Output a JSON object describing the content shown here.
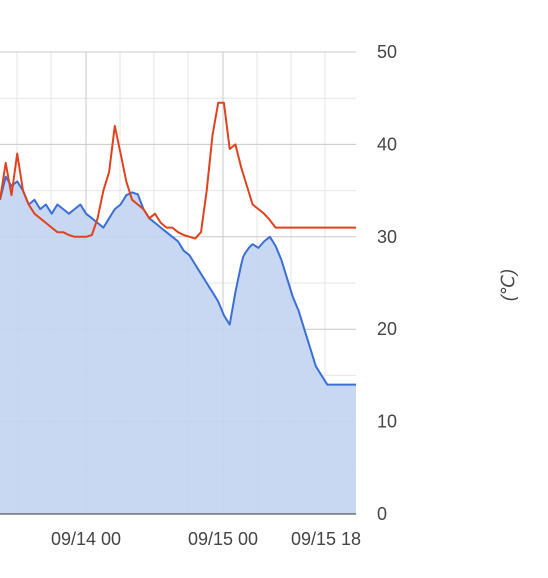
{
  "chart_data": {
    "type": "area",
    "ylabel": "(℃)",
    "ylim": [
      0,
      50
    ],
    "y_ticks": [
      "0",
      "10",
      "20",
      "30",
      "40",
      "50"
    ],
    "x_ticks": [
      "09/14 00",
      "09/15 00",
      "09/15 18"
    ],
    "grid": true,
    "colors": {
      "area_series_line": "#3b6fd4",
      "area_fill": "#c3d4f1",
      "line_series": "#e0421e",
      "grid_major": "#c8c8c8",
      "grid_minor": "#e6e6e6"
    },
    "series": [
      {
        "style": "area",
        "x": [
          0,
          3,
          6,
          9,
          12,
          15,
          18,
          21,
          24,
          27,
          30,
          33,
          36,
          39,
          42,
          45,
          48,
          51,
          54,
          57,
          60,
          63,
          66,
          69,
          72,
          75,
          78,
          81,
          84,
          87,
          90,
          93,
          96,
          99,
          102,
          105,
          108,
          111,
          114,
          117,
          120,
          123,
          126,
          127,
          128,
          130,
          132,
          135,
          138,
          141,
          144,
          147,
          150,
          153,
          156,
          159,
          162,
          165,
          168,
          171,
          174,
          177,
          180,
          183,
          186
        ],
        "values": [
          34.0,
          36.5,
          35.5,
          36.0,
          35.0,
          33.5,
          34.0,
          33.0,
          33.5,
          32.5,
          33.5,
          33.0,
          32.5,
          33.0,
          33.5,
          32.5,
          32.0,
          31.5,
          31.0,
          32.0,
          33.0,
          33.5,
          34.5,
          34.8,
          34.6,
          33.0,
          32.0,
          31.5,
          31.0,
          30.5,
          30.0,
          29.5,
          28.5,
          28.0,
          27.0,
          26.0,
          25.0,
          24.0,
          23.0,
          21.5,
          20.5,
          24.0,
          27.0,
          27.8,
          28.2,
          28.8,
          29.2,
          28.8,
          29.5,
          30.0,
          29.0,
          27.5,
          25.5,
          23.5,
          22.0,
          20.0,
          18.0,
          16.0,
          15.0,
          14.0,
          14.0,
          14.0,
          14.0,
          14.0,
          14.0
        ]
      },
      {
        "style": "line",
        "x": [
          0,
          3,
          6,
          9,
          12,
          15,
          18,
          21,
          24,
          27,
          30,
          33,
          36,
          39,
          42,
          45,
          48,
          51,
          54,
          57,
          60,
          63,
          66,
          69,
          72,
          75,
          78,
          81,
          84,
          87,
          90,
          93,
          96,
          99,
          102,
          105,
          108,
          111,
          114,
          117,
          120,
          123,
          126,
          129,
          132,
          135,
          138,
          141,
          144,
          147,
          150,
          153,
          156,
          159,
          162,
          165,
          168,
          171,
          174,
          177,
          180,
          183,
          186
        ],
        "values": [
          34.0,
          38.0,
          34.5,
          39.0,
          35.0,
          33.5,
          32.5,
          32.0,
          31.5,
          31.0,
          30.5,
          30.5,
          30.2,
          30.0,
          30.0,
          30.0,
          30.2,
          32.0,
          35.0,
          37.0,
          42.0,
          39.0,
          36.0,
          34.0,
          33.5,
          33.0,
          32.0,
          32.5,
          31.5,
          31.0,
          31.0,
          30.5,
          30.2,
          30.0,
          29.8,
          30.5,
          35.0,
          41.0,
          44.5,
          44.5,
          39.5,
          40.0,
          37.5,
          35.5,
          33.5,
          33.0,
          32.5,
          31.8,
          31.0,
          31.0,
          31.0,
          31.0,
          31.0,
          31.0,
          31.0,
          31.0,
          31.0,
          31.0,
          31.0,
          31.0,
          31.0,
          31.0,
          31.0
        ]
      }
    ]
  }
}
